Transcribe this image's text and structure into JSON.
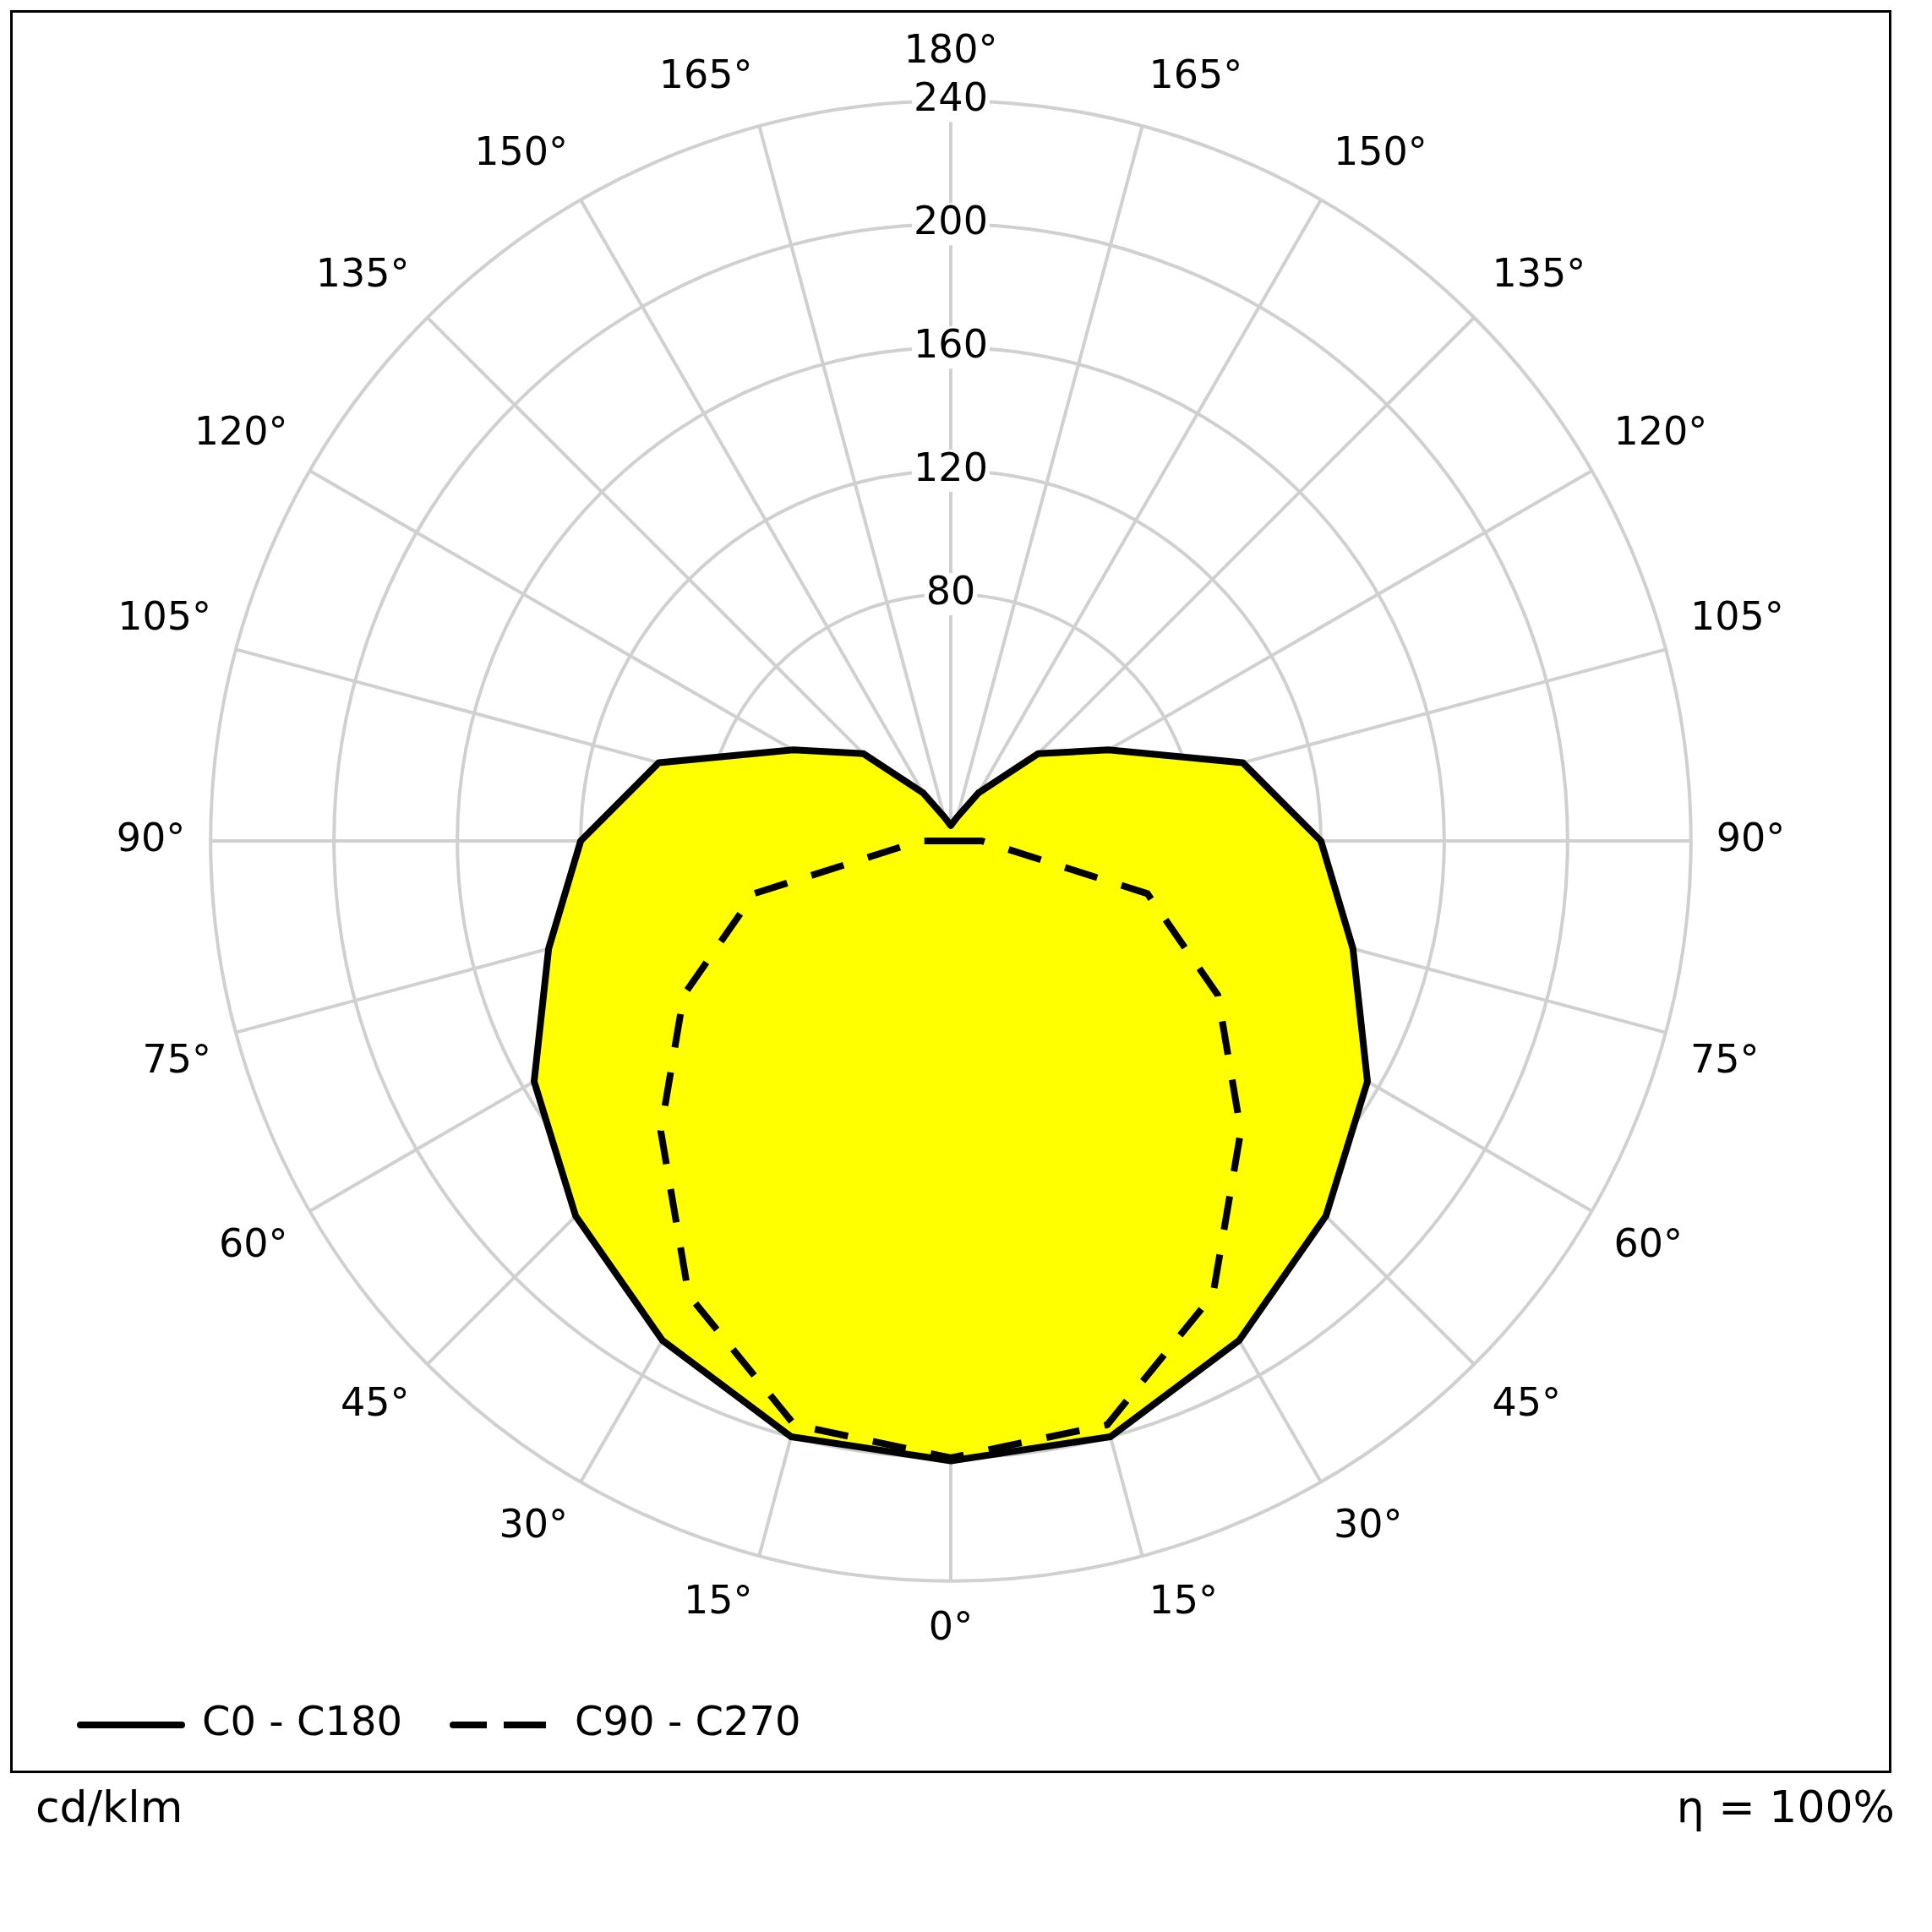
{
  "chart_data": {
    "type": "radar",
    "categories": [
      "180°",
      "165°",
      "150°",
      "135°",
      "120°",
      "105°",
      "90°",
      "75°",
      "60°",
      "45°",
      "30°",
      "15°",
      "0°",
      "15°",
      "30°",
      "45°",
      "60°",
      "75°",
      "90°",
      "105°",
      "120°",
      "135°",
      "150°",
      "165°"
    ],
    "series": [
      {
        "name": "C0 - C180",
        "type": "area",
        "color": "#000000",
        "line_style": "solid",
        "values": [
          5,
          8,
          18,
          40,
          59,
          98,
          120,
          135,
          156,
          172,
          187,
          200,
          201,
          200,
          187,
          172,
          156,
          135,
          120,
          98,
          59,
          40,
          18,
          8
        ]
      },
      {
        "name": "C90 - C270",
        "color": "#000000",
        "line_style": "dashed",
        "values": [
          0,
          0,
          0,
          0,
          0,
          0,
          10,
          66,
          100,
          133,
          170,
          196,
          200,
          196,
          170,
          133,
          100,
          66,
          10,
          0,
          0,
          0,
          0,
          0
        ]
      }
    ],
    "ylim": [
      0,
      240
    ],
    "yticks": [
      80,
      120,
      160,
      200,
      240
    ],
    "grid": true,
    "legend": "bottom",
    "marker": "none",
    "annotations": [
      "cd/klm",
      "η = 100%"
    ]
  }
}
